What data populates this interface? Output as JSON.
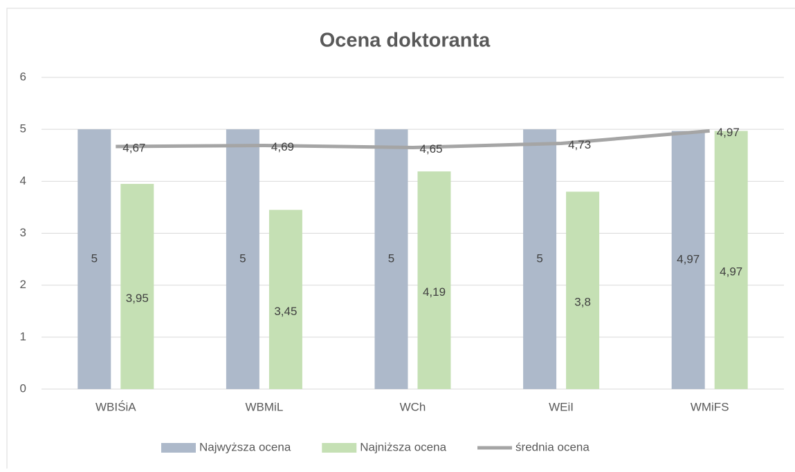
{
  "chart_data": {
    "type": "bar",
    "title": "Ocena doktoranta",
    "categories": [
      "WBIŚiA",
      "WBMiL",
      "WCh",
      "WEiI",
      "WMiFS"
    ],
    "series": [
      {
        "name": "Najwyższa ocena",
        "type": "bar",
        "color": "#adb9ca",
        "values": [
          5,
          5,
          5,
          5,
          4.97
        ],
        "value_labels": [
          "5",
          "5",
          "5",
          "5",
          "4,97"
        ]
      },
      {
        "name": "Najniższa ocena",
        "type": "bar",
        "color": "#c5e0b4",
        "values": [
          3.95,
          3.45,
          4.19,
          3.8,
          4.97
        ],
        "value_labels": [
          "3,95",
          "3,45",
          "4,19",
          "3,8",
          "4,97"
        ]
      },
      {
        "name": "średnia ocena",
        "type": "line",
        "color": "#a5a5a5",
        "values": [
          4.67,
          4.69,
          4.65,
          4.73,
          4.97
        ],
        "value_labels": [
          "4,67",
          "4,69",
          "4,65",
          "4,73",
          "4,97"
        ]
      }
    ],
    "ylim": [
      0,
      6
    ],
    "yticks": [
      0,
      1,
      2,
      3,
      4,
      5,
      6
    ],
    "grid": true,
    "legend": "bottom"
  }
}
